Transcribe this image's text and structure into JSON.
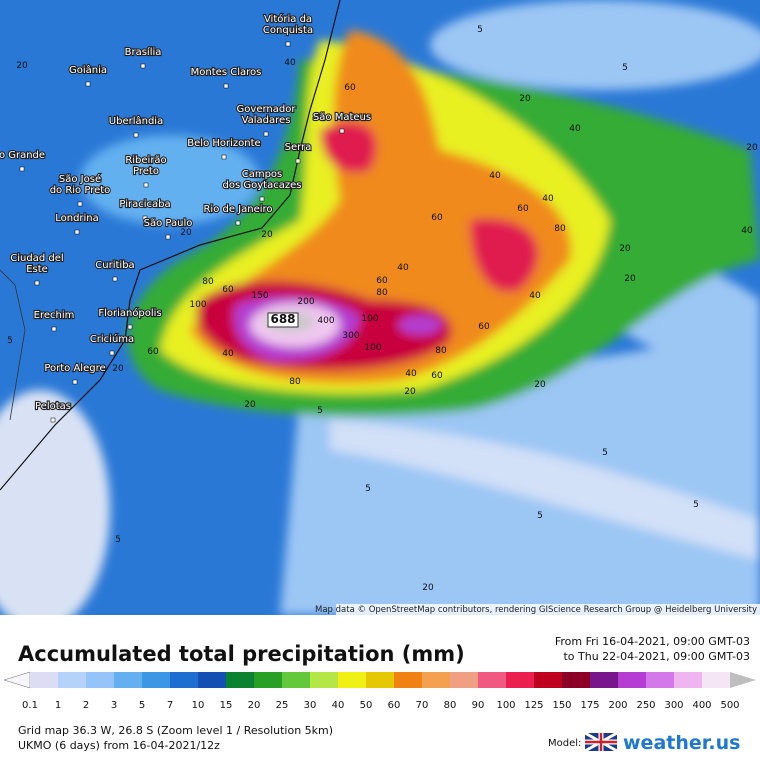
{
  "map": {
    "cities": [
      {
        "lines": [
          "Vitória da",
          "Conquista"
        ]
      },
      {
        "lines": [
          "Brasília"
        ]
      },
      {
        "lines": [
          "Goiânia"
        ]
      },
      {
        "lines": [
          "Montes Claros"
        ]
      },
      {
        "lines": [
          "Governador",
          "Valadares"
        ]
      },
      {
        "lines": [
          "São Mateus"
        ]
      },
      {
        "lines": [
          "Uberlândia"
        ]
      },
      {
        "lines": [
          "Belo Horizonte"
        ]
      },
      {
        "lines": [
          "Serra"
        ]
      },
      {
        "lines": [
          "o Grande"
        ]
      },
      {
        "lines": [
          "Ribeirão",
          "Preto"
        ]
      },
      {
        "lines": [
          "São José",
          "do Rio Preto"
        ]
      },
      {
        "lines": [
          "Campos",
          "dos Goytacazes"
        ]
      },
      {
        "lines": [
          "Piracicaba"
        ]
      },
      {
        "lines": [
          "Rio de Janeiro"
        ]
      },
      {
        "lines": [
          "Londrina"
        ]
      },
      {
        "lines": [
          "São Paulo"
        ]
      },
      {
        "lines": [
          "Ciudad del",
          "Este"
        ]
      },
      {
        "lines": [
          "Curitiba"
        ]
      },
      {
        "lines": [
          "Erechim"
        ]
      },
      {
        "lines": [
          "Florianópolis"
        ]
      },
      {
        "lines": [
          "Criciúma"
        ]
      },
      {
        "lines": [
          "Porto Alegre"
        ]
      },
      {
        "lines": [
          "Pelotas"
        ]
      }
    ],
    "contour_labels": [
      "5",
      "5",
      "20",
      "40",
      "20",
      "40",
      "40",
      "60",
      "60",
      "80",
      "40",
      "20",
      "40",
      "60",
      "80",
      "40",
      "20",
      "100",
      "60",
      "80",
      "150",
      "200",
      "688",
      "400",
      "300",
      "100",
      "100",
      "60",
      "80",
      "40",
      "60",
      "80",
      "40",
      "60",
      "20",
      "20",
      "20",
      "5",
      "5",
      "5",
      "5",
      "5",
      "5",
      "20",
      "20",
      "40",
      "60",
      "20",
      "20",
      "5",
      "20"
    ],
    "attribution": "Map data © OpenStreetMap contributors, rendering GIScience Research Group @ Heidelberg University"
  },
  "legend": {
    "title": "Accumulated total precipitation (mm)",
    "from": "From Fri 16-04-2021, 09:00 GMT-03",
    "to": "to Thu 22-04-2021, 09:00 GMT-03",
    "ticks": [
      0.1,
      1,
      2,
      3,
      5,
      7,
      10,
      15,
      20,
      25,
      30,
      40,
      50,
      60,
      70,
      80,
      90,
      100,
      125,
      150,
      175,
      200,
      250,
      300,
      400,
      500
    ],
    "colors": [
      "#dcdcf5",
      "#b4d2fa",
      "#96c3fa",
      "#64aff0",
      "#3c96e6",
      "#1e6ed2",
      "#1450b4",
      "#0a8232",
      "#28a028",
      "#64c83c",
      "#b4e646",
      "#f0f014",
      "#e6c800",
      "#f08214",
      "#f5a050",
      "#f0a082",
      "#f05a82",
      "#eb1e50",
      "#be001e",
      "#8c0028",
      "#78148c",
      "#b43cd2",
      "#d278eb",
      "#f0b4f0",
      "#f5e6f5"
    ],
    "below_color": "#f5f5fa",
    "above_color": "#bebebe"
  },
  "footer": {
    "grid": "Grid map 36.3 W, 26.8 S (Zoom level 1 / Resolution 5km)",
    "model_run": "UKMO (6 days) from 16-04-2021/12z",
    "model_label": "Model:",
    "brand": "weather.us"
  }
}
